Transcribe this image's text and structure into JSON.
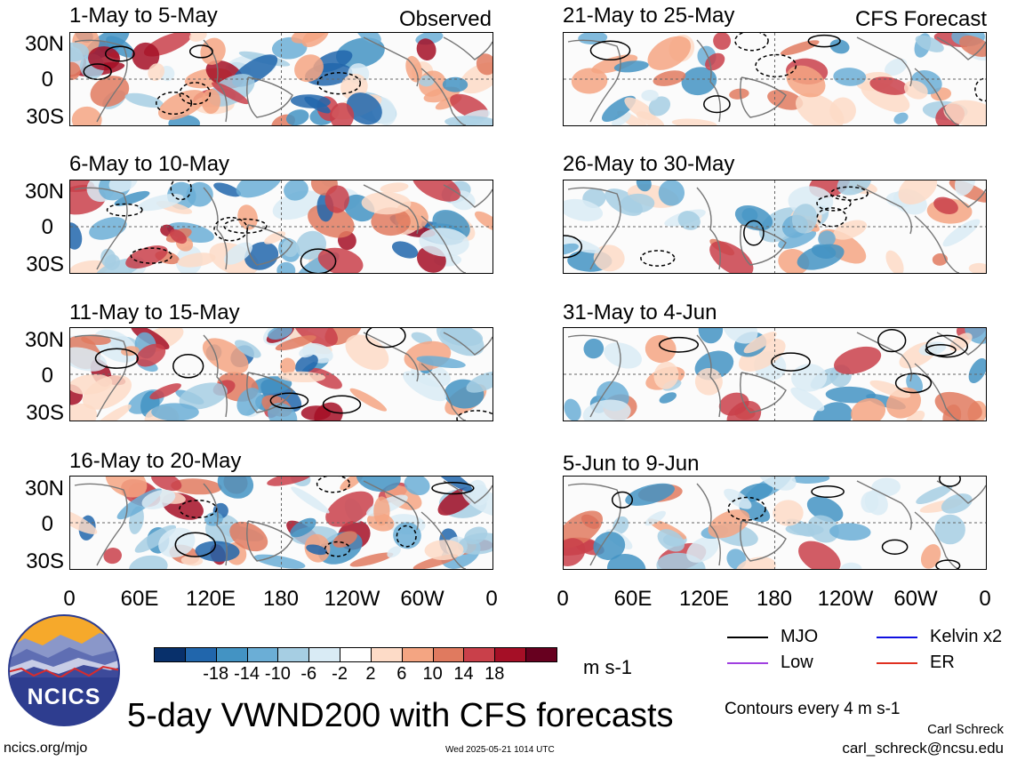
{
  "labels": {
    "observed": "Observed",
    "forecast": "CFS Forecast",
    "title": "5-day VWND200 with CFS forecasts",
    "units": "m s-1",
    "contours": "Contours every 4 m s-1",
    "author": "Carl Schreck",
    "email": "carl_schreck@ncsu.edu",
    "url": "ncics.org/mjo",
    "timestamp": "Wed 2025-05-21 1014 UTC",
    "logo_text": "NCICS"
  },
  "panels_left": [
    {
      "period": "1-May to 5-May"
    },
    {
      "period": "6-May to 10-May"
    },
    {
      "period": "11-May to 15-May"
    },
    {
      "period": "16-May to 20-May"
    }
  ],
  "panels_right": [
    {
      "period": "21-May to 25-May"
    },
    {
      "period": "26-May to 30-May"
    },
    {
      "period": "31-May to 4-Jun"
    },
    {
      "period": "5-Jun to 9-Jun"
    }
  ],
  "y_ticks": [
    "30N",
    "0",
    "30S"
  ],
  "x_ticks": [
    "0",
    "60E",
    "120E",
    "180",
    "120W",
    "60W",
    "0"
  ],
  "colorbar": {
    "labels": [
      "-18",
      "-14",
      "-10",
      "-6",
      "-2",
      "2",
      "6",
      "10",
      "14",
      "18"
    ],
    "colors": [
      "#08306b",
      "#2166ac",
      "#4393c3",
      "#6baed6",
      "#a6cee3",
      "#d9ebf5",
      "#ffffff",
      "#fddbc7",
      "#f4a582",
      "#e07a5f",
      "#c9404a",
      "#a50f26",
      "#67001f"
    ]
  },
  "legend": [
    {
      "label": "MJO",
      "color": "#000000"
    },
    {
      "label": "Kelvin x2",
      "color": "#1010e0"
    },
    {
      "label": "Low",
      "color": "#a040e0"
    },
    {
      "label": "ER",
      "color": "#e03020"
    }
  ]
}
